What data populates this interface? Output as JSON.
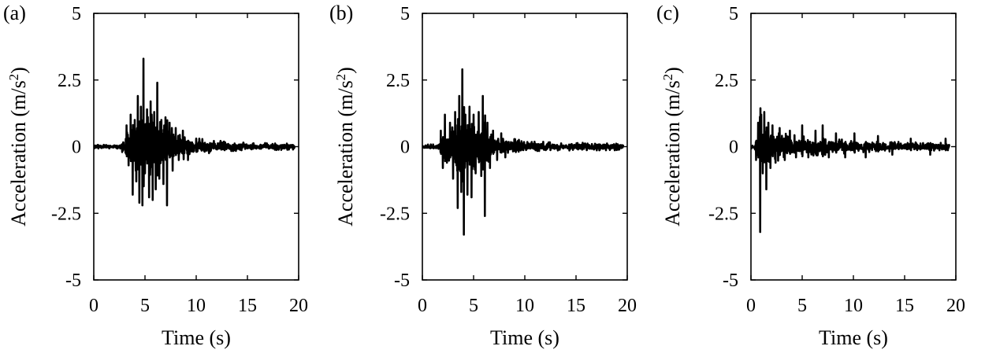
{
  "chart_data": [
    {
      "type": "line",
      "panel_label": "(a)",
      "xlabel": "Time (s)",
      "ylabel_main": "Acceleration (m/s",
      "ylabel_sup": "2",
      "ylabel_close": ")",
      "xlim": [
        0,
        20
      ],
      "ylim": [
        -5,
        5
      ],
      "xticks": [
        0,
        5,
        10,
        15,
        20
      ],
      "yticks": [
        -5,
        -2.5,
        0,
        2.5,
        5
      ],
      "xtick_labels": [
        "0",
        "5",
        "10",
        "15",
        "20"
      ],
      "ytick_labels": [
        "-5",
        "-2.5",
        "0",
        "2.5",
        "5"
      ],
      "x_end": 19.6,
      "envelope": {
        "t0": 2.6,
        "t_peak": 5.0,
        "amp": 1.7,
        "decay": 0.38,
        "noise": 0.12,
        "seed": 11
      },
      "spikes": [
        [
          3.2,
          0.8
        ],
        [
          3.4,
          -0.7
        ],
        [
          3.6,
          1.2
        ],
        [
          3.8,
          -1.8
        ],
        [
          4.0,
          1.0
        ],
        [
          4.15,
          -1.3
        ],
        [
          4.3,
          1.9
        ],
        [
          4.45,
          -2.1
        ],
        [
          4.6,
          1.5
        ],
        [
          4.75,
          -2.2
        ],
        [
          4.85,
          3.3
        ],
        [
          5.0,
          -1.0
        ],
        [
          5.2,
          1.4
        ],
        [
          5.4,
          -1.9
        ],
        [
          5.55,
          1.7
        ],
        [
          5.75,
          -2.0
        ],
        [
          5.9,
          1.3
        ],
        [
          6.05,
          -1.6
        ],
        [
          6.2,
          2.4
        ],
        [
          6.4,
          -1.2
        ],
        [
          6.6,
          1.0
        ],
        [
          6.8,
          -1.4
        ],
        [
          7.0,
          1.1
        ],
        [
          7.15,
          -2.2
        ],
        [
          7.4,
          0.9
        ],
        [
          7.7,
          -0.9
        ],
        [
          8.0,
          0.7
        ],
        [
          8.3,
          -0.5
        ],
        [
          8.7,
          0.6
        ],
        [
          9.2,
          -0.5
        ]
      ]
    },
    {
      "type": "line",
      "panel_label": "(b)",
      "xlabel": "Time (s)",
      "ylabel_main": "Acceleration (m/s",
      "ylabel_sup": "2",
      "ylabel_close": ")",
      "xlim": [
        0,
        20
      ],
      "ylim": [
        -5,
        5
      ],
      "xticks": [
        0,
        5,
        10,
        15,
        20
      ],
      "yticks": [
        -5,
        -2.5,
        0,
        2.5,
        5
      ],
      "xtick_labels": [
        "0",
        "5",
        "10",
        "15",
        "20"
      ],
      "ytick_labels": [
        "-5",
        "-2.5",
        "0",
        "2.5",
        "5"
      ],
      "x_end": 19.6,
      "envelope": {
        "t0": 1.5,
        "t_peak": 4.2,
        "amp": 1.3,
        "decay": 0.42,
        "noise": 0.14,
        "seed": 23
      },
      "spikes": [
        [
          1.8,
          0.6
        ],
        [
          2.0,
          -0.8
        ],
        [
          2.2,
          1.2
        ],
        [
          2.4,
          -0.6
        ],
        [
          2.7,
          0.9
        ],
        [
          3.0,
          -1.2
        ],
        [
          3.2,
          1.3
        ],
        [
          3.45,
          -2.3
        ],
        [
          3.6,
          1.9
        ],
        [
          3.8,
          -1.7
        ],
        [
          3.9,
          2.9
        ],
        [
          4.05,
          -3.3
        ],
        [
          4.2,
          1.2
        ],
        [
          4.4,
          -1.8
        ],
        [
          4.6,
          1.5
        ],
        [
          4.8,
          -1.9
        ],
        [
          5.0,
          1.2
        ],
        [
          5.2,
          -1.0
        ],
        [
          5.5,
          1.3
        ],
        [
          5.75,
          -1.1
        ],
        [
          5.9,
          1.9
        ],
        [
          6.1,
          -2.6
        ],
        [
          6.35,
          0.9
        ],
        [
          6.6,
          -0.8
        ],
        [
          6.9,
          0.6
        ],
        [
          7.3,
          -0.5
        ],
        [
          7.7,
          0.5
        ],
        [
          8.1,
          -0.4
        ]
      ]
    },
    {
      "type": "line",
      "panel_label": "(c)",
      "xlabel": "Time (s)",
      "ylabel_main": "Acceleration (m/s",
      "ylabel_sup": "2",
      "ylabel_close": ")",
      "xlim": [
        0,
        20
      ],
      "ylim": [
        -5,
        5
      ],
      "xticks": [
        0,
        5,
        10,
        15,
        20
      ],
      "yticks": [
        -5,
        -2.5,
        0,
        2.5,
        5
      ],
      "xtick_labels": [
        "0",
        "5",
        "10",
        "15",
        "20"
      ],
      "ytick_labels": [
        "-5",
        "-2.5",
        "0",
        "2.5",
        "5"
      ],
      "x_end": 19.4,
      "envelope": {
        "t0": 0.3,
        "t_peak": 1.0,
        "amp": 0.7,
        "decay": 0.17,
        "noise": 0.12,
        "seed": 37
      },
      "spikes": [
        [
          0.5,
          -0.5
        ],
        [
          0.7,
          0.9
        ],
        [
          0.9,
          -3.2
        ],
        [
          1.0,
          1.2
        ],
        [
          1.15,
          -1.0
        ],
        [
          1.3,
          1.3
        ],
        [
          1.5,
          -1.6
        ],
        [
          1.7,
          0.9
        ],
        [
          1.9,
          -0.8
        ],
        [
          2.1,
          0.8
        ],
        [
          2.4,
          -0.6
        ],
        [
          2.8,
          0.7
        ],
        [
          3.3,
          -0.5
        ],
        [
          3.8,
          0.6
        ],
        [
          4.4,
          -0.4
        ],
        [
          5.0,
          0.8
        ],
        [
          5.6,
          -0.4
        ],
        [
          6.3,
          0.6
        ],
        [
          7.0,
          0.8
        ],
        [
          7.6,
          -0.4
        ],
        [
          8.3,
          0.5
        ],
        [
          9.2,
          -0.4
        ],
        [
          10.1,
          0.5
        ],
        [
          11.2,
          -0.4
        ],
        [
          12.4,
          0.4
        ],
        [
          13.8,
          -0.3
        ],
        [
          15.6,
          0.3
        ],
        [
          17.5,
          -0.3
        ],
        [
          19.0,
          0.3
        ]
      ]
    }
  ]
}
